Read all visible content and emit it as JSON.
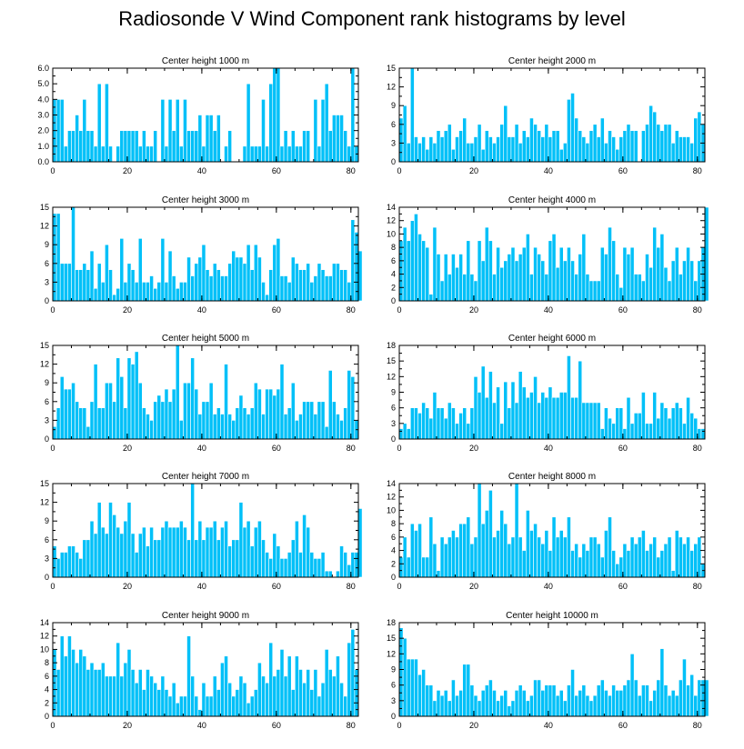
{
  "figure_title": "Radiosonde V Wind Component rank histograms by level",
  "colors": {
    "bar": "#00c0f8",
    "bar_edge": "#ffffff",
    "axis": "#000000",
    "background": "#ffffff"
  },
  "chart_data": [
    {
      "type": "bar",
      "title": "Center height 1000 m",
      "x_start": 0,
      "xlim": [
        0,
        82
      ],
      "xticks": [
        0,
        20,
        40,
        60,
        80
      ],
      "ylim": [
        0,
        6.0
      ],
      "yticks": [
        0,
        1,
        2,
        3,
        4,
        5,
        6
      ],
      "ytick_labels": [
        "0.0",
        "1.0",
        "2.0",
        "3.0",
        "4.0",
        "5.0",
        "6.0"
      ],
      "values": [
        4,
        4,
        4,
        1,
        2,
        2,
        3,
        2,
        4,
        2,
        2,
        1,
        5,
        1,
        5,
        1,
        0,
        1,
        2,
        2,
        2,
        2,
        2,
        1,
        2,
        1,
        1,
        2,
        0,
        4,
        1,
        4,
        2,
        4,
        1,
        4,
        2,
        2,
        2,
        3,
        1,
        3,
        3,
        2,
        3,
        0,
        1,
        2,
        0,
        0,
        0,
        1,
        5,
        1,
        1,
        1,
        4,
        1,
        5,
        6,
        6,
        1,
        2,
        1,
        2,
        1,
        1,
        2,
        2,
        0,
        4,
        1,
        4,
        5,
        2,
        3,
        3,
        3,
        2,
        1,
        6,
        1
      ],
      "xlabel": "",
      "ylabel": ""
    },
    {
      "type": "bar",
      "title": "Center height 2000 m",
      "x_start": 0,
      "xlim": [
        0,
        82
      ],
      "xticks": [
        0,
        20,
        40,
        60,
        80
      ],
      "ylim": [
        0,
        15
      ],
      "yticks": [
        0,
        3,
        6,
        9,
        12,
        15
      ],
      "ytick_labels": [
        "0",
        "3",
        "6",
        "9",
        "12",
        "15"
      ],
      "values": [
        7,
        9,
        3,
        15,
        4,
        3,
        4,
        2,
        4,
        3,
        5,
        4,
        5,
        6,
        2,
        4,
        5,
        7,
        3,
        3,
        4,
        6,
        2,
        5,
        4,
        3,
        4,
        6,
        9,
        4,
        4,
        6,
        3,
        5,
        4,
        7,
        6,
        5,
        4,
        6,
        4,
        5,
        5,
        2,
        3,
        10,
        11,
        7,
        5,
        4,
        3,
        5,
        6,
        4,
        7,
        3,
        5,
        4,
        2,
        4,
        5,
        6,
        5,
        5,
        0,
        5,
        6,
        9,
        8,
        6,
        5,
        6,
        6,
        3,
        5,
        4,
        4,
        4,
        3,
        7,
        8,
        6
      ],
      "xlabel": "",
      "ylabel": ""
    },
    {
      "type": "bar",
      "title": "Center height 3000 m",
      "x_start": 0,
      "xlim": [
        0,
        82
      ],
      "xticks": [
        0,
        20,
        40,
        60,
        80
      ],
      "ylim": [
        0,
        15
      ],
      "yticks": [
        0,
        3,
        6,
        9,
        12,
        15
      ],
      "ytick_labels": [
        "0",
        "3",
        "6",
        "9",
        "12",
        "15"
      ],
      "values": [
        14,
        14,
        6,
        6,
        6,
        15,
        5,
        5,
        6,
        5,
        8,
        2,
        6,
        3,
        9,
        5,
        1,
        2,
        10,
        3,
        6,
        5,
        3,
        10,
        3,
        3,
        4,
        2,
        3,
        10,
        3,
        8,
        4,
        2,
        3,
        3,
        7,
        4,
        6,
        7,
        9,
        5,
        4,
        6,
        5,
        4,
        4,
        6,
        8,
        7,
        7,
        6,
        9,
        5,
        9,
        7,
        3,
        1,
        5,
        9,
        10,
        4,
        4,
        3,
        7,
        6,
        5,
        5,
        6,
        3,
        4,
        6,
        5,
        4,
        4,
        6,
        6,
        5,
        5,
        3,
        13,
        11,
        8
      ],
      "xlabel": "",
      "ylabel": ""
    },
    {
      "type": "bar",
      "title": "Center height 4000 m",
      "x_start": 0,
      "xlim": [
        0,
        82
      ],
      "xticks": [
        0,
        20,
        40,
        60,
        80
      ],
      "ylim": [
        0,
        14
      ],
      "yticks": [
        0,
        2,
        4,
        6,
        8,
        10,
        12,
        14
      ],
      "ytick_labels": [
        "0",
        "2",
        "4",
        "6",
        "8",
        "10",
        "12",
        "14"
      ],
      "values": [
        9,
        11,
        9,
        12,
        13,
        10,
        9,
        8,
        1,
        11,
        7,
        3,
        7,
        4,
        7,
        5,
        7,
        4,
        9,
        4,
        3,
        9,
        6,
        11,
        9,
        4,
        8,
        5,
        6,
        7,
        8,
        6,
        7,
        8,
        10,
        4,
        8,
        7,
        6,
        4,
        9,
        10,
        5,
        8,
        6,
        8,
        6,
        4,
        7,
        10,
        4,
        3,
        3,
        3,
        8,
        7,
        11,
        9,
        4,
        2,
        8,
        7,
        8,
        4,
        4,
        3,
        7,
        5,
        11,
        8,
        10,
        5,
        3,
        6,
        8,
        4,
        6,
        8,
        6,
        3,
        6,
        8,
        14
      ],
      "xlabel": "",
      "ylabel": ""
    },
    {
      "type": "bar",
      "title": "Center height 5000 m",
      "x_start": 0,
      "xlim": [
        0,
        82
      ],
      "xticks": [
        0,
        20,
        40,
        60,
        80
      ],
      "ylim": [
        0,
        15
      ],
      "yticks": [
        0,
        3,
        6,
        9,
        12,
        15
      ],
      "ytick_labels": [
        "0",
        "3",
        "6",
        "9",
        "12",
        "15"
      ],
      "values": [
        2,
        5,
        10,
        8,
        8,
        9,
        6,
        5,
        5,
        2,
        6,
        12,
        5,
        5,
        9,
        9,
        6,
        13,
        10,
        5,
        13,
        12,
        14,
        9,
        5,
        4,
        3,
        6,
        7,
        6,
        8,
        6,
        8,
        15,
        3,
        9,
        9,
        13,
        8,
        4,
        6,
        6,
        9,
        4,
        5,
        4,
        12,
        4,
        3,
        5,
        7,
        5,
        4,
        5,
        9,
        8,
        4,
        8,
        8,
        7,
        8,
        12,
        4,
        5,
        9,
        3,
        4,
        6,
        6,
        6,
        4,
        6,
        6,
        2,
        11,
        6,
        4,
        3,
        5,
        11,
        10,
        3
      ],
      "xlabel": "",
      "ylabel": ""
    },
    {
      "type": "bar",
      "title": "Center height 6000 m",
      "x_start": 0,
      "xlim": [
        0,
        82
      ],
      "xticks": [
        0,
        20,
        40,
        60,
        80
      ],
      "ylim": [
        0,
        18
      ],
      "yticks": [
        0,
        3,
        6,
        9,
        12,
        15,
        18
      ],
      "ytick_labels": [
        "0",
        "3",
        "6",
        "9",
        "12",
        "15",
        "18"
      ],
      "values": [
        2,
        3,
        2,
        6,
        6,
        5,
        7,
        6,
        4,
        9,
        6,
        6,
        4,
        7,
        6,
        3,
        5,
        6,
        3,
        6,
        12,
        9,
        14,
        8,
        13,
        7,
        10,
        3,
        11,
        6,
        11,
        7,
        13,
        10,
        8,
        9,
        12,
        7,
        9,
        8,
        10,
        8,
        8,
        9,
        9,
        16,
        8,
        8,
        15,
        7,
        7,
        7,
        7,
        7,
        2,
        6,
        4,
        3,
        6,
        6,
        2,
        8,
        3,
        5,
        5,
        9,
        3,
        3,
        9,
        4,
        7,
        6,
        4,
        6,
        7,
        6,
        3,
        8,
        5,
        4,
        2,
        2
      ],
      "xlabel": "",
      "ylabel": ""
    },
    {
      "type": "bar",
      "title": "Center height 7000 m",
      "x_start": 0,
      "xlim": [
        0,
        82
      ],
      "xticks": [
        0,
        20,
        40,
        60,
        80
      ],
      "ylim": [
        0,
        15
      ],
      "yticks": [
        0,
        3,
        6,
        9,
        12,
        15
      ],
      "ytick_labels": [
        "0",
        "3",
        "6",
        "9",
        "12",
        "15"
      ],
      "values": [
        5,
        3,
        4,
        4,
        5,
        5,
        4,
        3,
        6,
        6,
        9,
        7,
        12,
        8,
        7,
        12,
        10,
        8,
        7,
        9,
        12,
        7,
        4,
        7,
        8,
        5,
        8,
        6,
        6,
        8,
        9,
        8,
        8,
        8,
        9,
        8,
        6,
        15,
        6,
        9,
        6,
        8,
        8,
        9,
        6,
        8,
        9,
        5,
        6,
        6,
        12,
        8,
        9,
        5,
        8,
        9,
        6,
        4,
        3,
        7,
        5,
        3,
        3,
        4,
        6,
        9,
        4,
        10,
        8,
        4,
        3,
        3,
        4,
        1,
        1,
        0,
        1,
        5,
        4,
        2,
        4,
        4,
        11
      ],
      "xlabel": "",
      "ylabel": ""
    },
    {
      "type": "bar",
      "title": "Center height 8000 m",
      "x_start": 0,
      "xlim": [
        0,
        82
      ],
      "xticks": [
        0,
        20,
        40,
        60,
        80
      ],
      "ylim": [
        0,
        14
      ],
      "yticks": [
        0,
        2,
        4,
        6,
        8,
        10,
        12,
        14
      ],
      "ytick_labels": [
        "0",
        "2",
        "4",
        "6",
        "8",
        "10",
        "12",
        "14"
      ],
      "values": [
        3,
        6,
        3,
        8,
        7,
        8,
        3,
        3,
        9,
        5,
        1,
        6,
        5,
        6,
        7,
        6,
        8,
        8,
        9,
        5,
        6,
        14,
        8,
        10,
        13,
        6,
        7,
        10,
        8,
        5,
        6,
        14,
        6,
        4,
        10,
        7,
        8,
        6,
        5,
        7,
        4,
        9,
        6,
        7,
        6,
        9,
        4,
        5,
        3,
        5,
        4,
        6,
        6,
        5,
        3,
        7,
        9,
        4,
        2,
        3,
        5,
        4,
        6,
        5,
        6,
        7,
        4,
        5,
        6,
        3,
        4,
        5,
        6,
        1,
        7,
        6,
        5,
        6,
        4,
        5,
        6,
        2
      ],
      "xlabel": "",
      "ylabel": ""
    },
    {
      "type": "bar",
      "title": "Center height 9000 m",
      "x_start": 0,
      "xlim": [
        0,
        82
      ],
      "xticks": [
        0,
        20,
        40,
        60,
        80
      ],
      "ylim": [
        0,
        14
      ],
      "yticks": [
        0,
        2,
        4,
        6,
        8,
        10,
        12,
        14
      ],
      "ytick_labels": [
        "0",
        "2",
        "4",
        "6",
        "8",
        "10",
        "12",
        "14"
      ],
      "values": [
        10,
        7,
        12,
        9,
        12,
        10,
        8,
        10,
        9,
        7,
        8,
        7,
        7,
        8,
        6,
        6,
        6,
        11,
        6,
        8,
        10,
        7,
        5,
        7,
        4,
        7,
        6,
        5,
        4,
        6,
        4,
        3,
        5,
        2,
        3,
        3,
        12,
        6,
        3,
        1,
        5,
        3,
        3,
        6,
        4,
        8,
        9,
        5,
        3,
        4,
        6,
        5,
        2,
        3,
        4,
        8,
        6,
        5,
        11,
        6,
        7,
        10,
        6,
        9,
        4,
        9,
        7,
        5,
        7,
        4,
        7,
        3,
        5,
        10,
        7,
        6,
        9,
        5,
        3,
        11,
        13,
        7
      ],
      "xlabel": "",
      "ylabel": ""
    },
    {
      "type": "bar",
      "title": "Center height 10000 m",
      "x_start": 0,
      "xlim": [
        0,
        82
      ],
      "xticks": [
        0,
        20,
        40,
        60,
        80
      ],
      "ylim": [
        0,
        18
      ],
      "yticks": [
        0,
        3,
        6,
        9,
        12,
        15,
        18
      ],
      "ytick_labels": [
        "0",
        "3",
        "6",
        "9",
        "12",
        "15",
        "18"
      ],
      "values": [
        17,
        15,
        11,
        11,
        11,
        8,
        9,
        6,
        6,
        3,
        5,
        4,
        5,
        3,
        7,
        4,
        5,
        10,
        10,
        6,
        4,
        3,
        5,
        6,
        7,
        5,
        3,
        4,
        5,
        2,
        3,
        5,
        6,
        5,
        3,
        4,
        7,
        7,
        5,
        6,
        6,
        6,
        4,
        5,
        3,
        6,
        9,
        4,
        5,
        6,
        4,
        3,
        4,
        6,
        7,
        5,
        4,
        6,
        5,
        5,
        6,
        7,
        12,
        7,
        4,
        6,
        6,
        3,
        5,
        7,
        13,
        6,
        4,
        5,
        4,
        7,
        11,
        6,
        8,
        4,
        7,
        7,
        7
      ]
    }
  ]
}
